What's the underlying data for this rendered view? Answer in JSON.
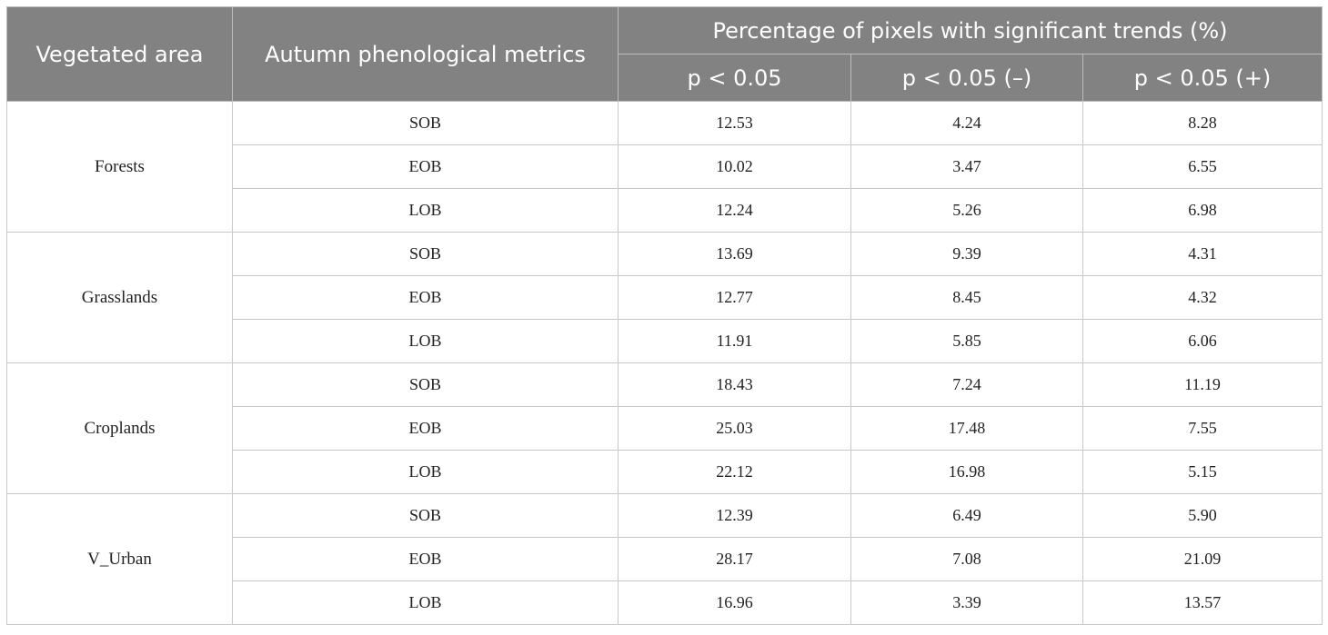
{
  "table": {
    "headers": {
      "vegetated_area": "Vegetated area",
      "metrics": "Autumn phenological metrics",
      "percentage_group": "Percentage of pixels with significant trends (%)",
      "sub": [
        "p < 0.05",
        "p < 0.05 (–)",
        "p < 0.05 (+)"
      ]
    },
    "groups": [
      {
        "area": "Forests",
        "rows": [
          {
            "metric": "SOB",
            "values": [
              "12.53",
              "4.24",
              "8.28"
            ]
          },
          {
            "metric": "EOB",
            "values": [
              "10.02",
              "3.47",
              "6.55"
            ]
          },
          {
            "metric": "LOB",
            "values": [
              "12.24",
              "5.26",
              "6.98"
            ]
          }
        ]
      },
      {
        "area": "Grasslands",
        "rows": [
          {
            "metric": "SOB",
            "values": [
              "13.69",
              "9.39",
              "4.31"
            ]
          },
          {
            "metric": "EOB",
            "values": [
              "12.77",
              "8.45",
              "4.32"
            ]
          },
          {
            "metric": "LOB",
            "values": [
              "11.91",
              "5.85",
              "6.06"
            ]
          }
        ]
      },
      {
        "area": "Croplands",
        "rows": [
          {
            "metric": "SOB",
            "values": [
              "18.43",
              "7.24",
              "11.19"
            ]
          },
          {
            "metric": "EOB",
            "values": [
              "25.03",
              "17.48",
              "7.55"
            ]
          },
          {
            "metric": "LOB",
            "values": [
              "22.12",
              "16.98",
              "5.15"
            ]
          }
        ]
      },
      {
        "area": "V_Urban",
        "rows": [
          {
            "metric": "SOB",
            "values": [
              "12.39",
              "6.49",
              "5.90"
            ]
          },
          {
            "metric": "EOB",
            "values": [
              "28.17",
              "7.08",
              "21.09"
            ]
          },
          {
            "metric": "LOB",
            "values": [
              "16.96",
              "3.39",
              "13.57"
            ]
          }
        ]
      }
    ]
  }
}
